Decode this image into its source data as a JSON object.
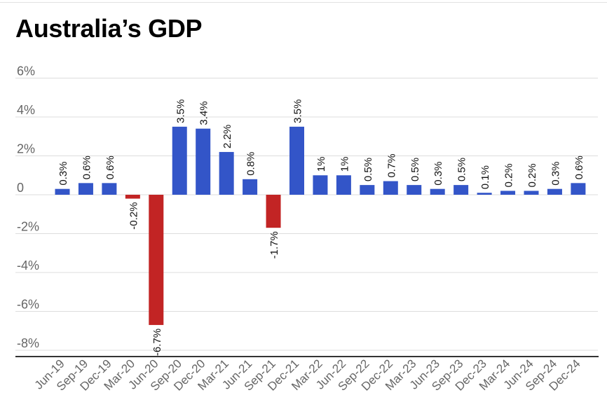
{
  "chart_data": {
    "type": "bar",
    "title": "Australia’s GDP",
    "xlabel": "",
    "ylabel": "",
    "ylim": [
      -8.5,
      6
    ],
    "yticks": [
      {
        "value": 6,
        "label": "6%"
      },
      {
        "value": 4,
        "label": "4%"
      },
      {
        "value": 2,
        "label": "2%"
      },
      {
        "value": 0,
        "label": "0"
      },
      {
        "value": -2,
        "label": "-2%"
      },
      {
        "value": -4,
        "label": "-4%"
      },
      {
        "value": -6,
        "label": "-6%"
      },
      {
        "value": -8,
        "label": "-8%"
      }
    ],
    "grid": true,
    "legend": "none",
    "colors": {
      "positive": "#3355c8",
      "negative": "#c22424",
      "grid": "#dddddd",
      "axis_text": "#666666"
    },
    "categories": [
      "Jun-19",
      "Sep-19",
      "Dec-19",
      "Mar-20",
      "Jun-20",
      "Sep-20",
      "Dec-20",
      "Mar-21",
      "Jun-21",
      "Sep-21",
      "Dec-21",
      "Mar-22",
      "Jun-22",
      "Sep-22",
      "Dec-22",
      "Mar-23",
      "Jun-23",
      "Sep-23",
      "Dec-23",
      "Mar-24",
      "Jun-24",
      "Sep-24",
      "Dec-24"
    ],
    "values": [
      0.3,
      0.6,
      0.6,
      -0.2,
      -6.7,
      3.5,
      3.4,
      2.2,
      0.8,
      -1.7,
      3.5,
      1,
      1,
      0.5,
      0.7,
      0.5,
      0.3,
      0.5,
      0.1,
      0.2,
      0.2,
      0.3,
      0.6
    ],
    "data_labels": [
      "0.3%",
      "0.6%",
      "0.6%",
      "-0.2%",
      "-6.7%",
      "3.5%",
      "3.4%",
      "2.2%",
      "0.8%",
      "-1.7%",
      "3.5%",
      "1%",
      "1%",
      "0.5%",
      "0.7%",
      "0.5%",
      "0.3%",
      "0.5%",
      "0.1%",
      "0.2%",
      "0.2%",
      "0.3%",
      "0.6%"
    ]
  }
}
